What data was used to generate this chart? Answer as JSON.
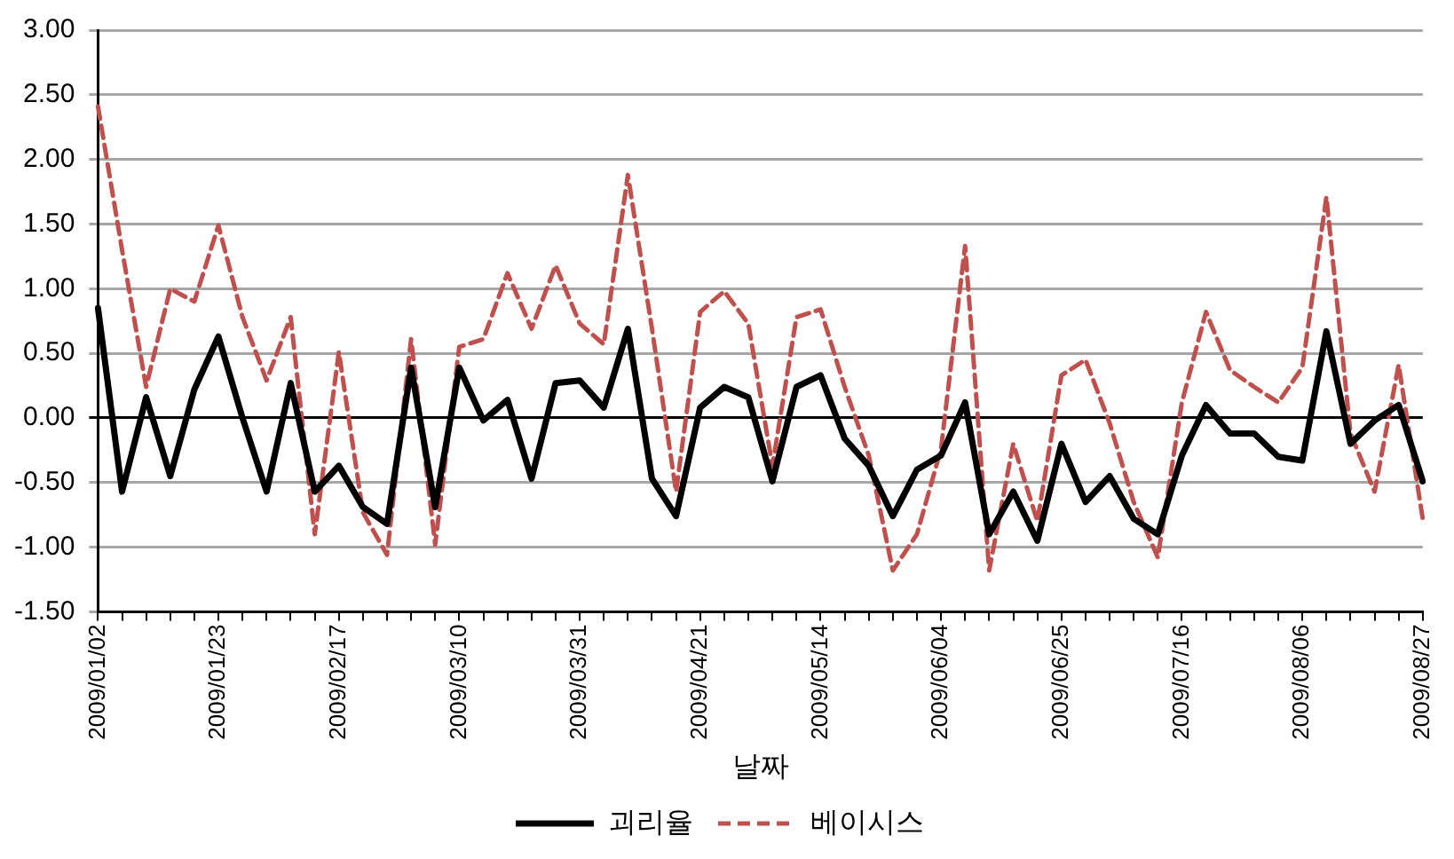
{
  "chart_data": {
    "type": "line",
    "xlabel": "날짜",
    "categories": [
      "2009/01/02",
      null,
      null,
      null,
      null,
      "2009/01/23",
      null,
      null,
      null,
      null,
      "2009/02/17",
      null,
      null,
      null,
      null,
      "2009/03/10",
      null,
      null,
      null,
      null,
      "2009/03/31",
      null,
      null,
      null,
      null,
      "2009/04/21",
      null,
      null,
      null,
      null,
      "2009/05/14",
      null,
      null,
      null,
      null,
      "2009/06/04",
      null,
      null,
      null,
      null,
      "2009/06/25",
      null,
      null,
      null,
      null,
      "2009/07/16",
      null,
      null,
      null,
      null,
      "2009/08/06",
      null,
      null,
      null,
      null,
      "2009/08/27"
    ],
    "series": [
      {
        "name": "괴리율",
        "color": "#000000",
        "line_style": "solid",
        "values": [
          0.85,
          -0.57,
          0.16,
          -0.45,
          0.22,
          0.63,
          0.0,
          -0.57,
          0.27,
          -0.57,
          -0.37,
          -0.69,
          -0.82,
          0.39,
          -0.69,
          0.39,
          -0.02,
          0.14,
          -0.47,
          0.27,
          0.29,
          0.08,
          0.69,
          -0.47,
          -0.76,
          0.08,
          0.24,
          0.16,
          -0.49,
          0.24,
          0.33,
          -0.16,
          -0.37,
          -0.76,
          -0.4,
          -0.29,
          0.12,
          -0.9,
          -0.57,
          -0.95,
          -0.2,
          -0.65,
          -0.45,
          -0.78,
          -0.9,
          -0.29,
          0.1,
          -0.12,
          -0.12,
          -0.3,
          -0.33,
          0.67,
          -0.2,
          -0.02,
          0.1,
          -0.49
        ]
      },
      {
        "name": "베이시스",
        "color": "#c0504d",
        "line_style": "dashed",
        "values": [
          2.41,
          1.3,
          0.24,
          1.0,
          0.9,
          1.49,
          0.78,
          0.29,
          0.78,
          -0.9,
          0.51,
          -0.73,
          -1.06,
          0.61,
          -0.98,
          0.55,
          0.61,
          1.12,
          0.69,
          1.18,
          0.73,
          0.57,
          1.88,
          0.69,
          -0.57,
          0.82,
          0.98,
          0.73,
          -0.37,
          0.78,
          0.84,
          0.24,
          -0.29,
          -1.18,
          -0.9,
          -0.24,
          1.33,
          -1.18,
          -0.2,
          -0.8,
          0.33,
          0.45,
          -0.04,
          -0.65,
          -1.08,
          0.12,
          0.82,
          0.37,
          0.24,
          0.12,
          0.39,
          1.71,
          -0.12,
          -0.57,
          0.41,
          -0.78
        ]
      }
    ],
    "ylim": [
      -1.5,
      3.0
    ],
    "yticks": [
      {
        "value": -1.5,
        "label": "-1.50"
      },
      {
        "value": -1.0,
        "label": "-1.00"
      },
      {
        "value": -0.5,
        "label": "-0.50"
      },
      {
        "value": 0,
        "label": "0.00"
      },
      {
        "value": 0.5,
        "label": "0.50"
      },
      {
        "value": 1.0,
        "label": "1.00"
      },
      {
        "value": 1.5,
        "label": "1.50"
      },
      {
        "value": 2.0,
        "label": "2.00"
      },
      {
        "value": 2.5,
        "label": "2.50"
      },
      {
        "value": 3.0,
        "label": "3.00"
      }
    ],
    "grid": "y",
    "legend": "bottom",
    "marker": "none"
  }
}
